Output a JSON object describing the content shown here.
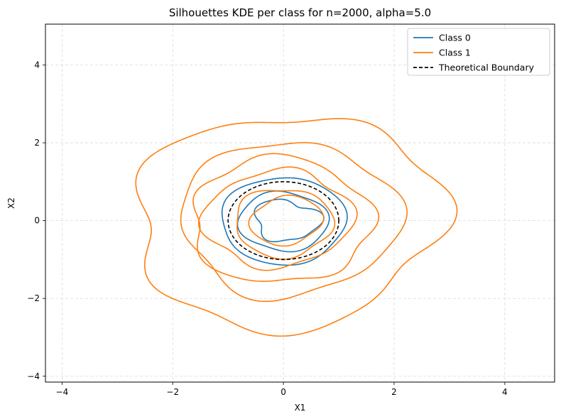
{
  "chart_data": {
    "type": "line",
    "title": "Silhouettes KDE per class for n=2000, alpha=5.0",
    "xlabel": "X1",
    "ylabel": "X2",
    "xlim": [
      -4.3,
      4.9
    ],
    "ylim": [
      -4.15,
      5.05
    ],
    "xticks": [
      -4,
      -2,
      0,
      2,
      4
    ],
    "yticks": [
      -4,
      -2,
      0,
      2,
      4
    ],
    "grid": true,
    "legend_position": "top-right",
    "colors": {
      "class0": "#1f77b4",
      "class1": "#ff7f0e",
      "boundary": "#000000",
      "grid": "#d9d9d9"
    },
    "series": [
      {
        "name": "Class 0",
        "style": "solid",
        "contours": [
          {
            "cx": 0.0,
            "cy": 0.0,
            "r": 1.12,
            "wobble": [
              [
                3,
                0.03,
                0.2
              ],
              [
                5,
                0.02,
                1.1
              ]
            ]
          },
          {
            "cx": 0.0,
            "cy": -0.02,
            "r": 0.78,
            "wobble": [
              [
                4,
                0.05,
                0.4
              ],
              [
                2,
                0.04,
                2.0
              ]
            ]
          },
          {
            "cx": 0.05,
            "cy": 0.0,
            "r": 0.55,
            "wobble": [
              [
                3,
                0.14,
                1.3
              ],
              [
                5,
                0.07,
                0.3
              ],
              [
                2,
                0.08,
                2.2
              ]
            ]
          }
        ]
      },
      {
        "name": "Class 1",
        "style": "solid",
        "contours": [
          {
            "cx": 0.05,
            "cy": 0.0,
            "r": 2.75,
            "wobble": [
              [
                3,
                0.06,
                0.5
              ],
              [
                5,
                0.05,
                1.7
              ],
              [
                7,
                0.035,
                0.9
              ],
              [
                2,
                0.03,
                0.1
              ]
            ]
          },
          {
            "cx": 0.1,
            "cy": 0.05,
            "r": 1.97,
            "wobble": [
              [
                3,
                0.05,
                1.0
              ],
              [
                6,
                0.035,
                0.4
              ],
              [
                4,
                0.03,
                2.4
              ]
            ]
          },
          {
            "cx": -0.05,
            "cy": 0.0,
            "r": 1.62,
            "wobble": [
              [
                5,
                0.05,
                0.6
              ],
              [
                3,
                0.04,
                2.2
              ],
              [
                7,
                0.03,
                1.3
              ]
            ]
          },
          {
            "cx": -0.1,
            "cy": 0.05,
            "r": 1.28,
            "wobble": [
              [
                4,
                0.06,
                1.8
              ],
              [
                6,
                0.04,
                0.2
              ],
              [
                2,
                0.05,
                1.0
              ]
            ]
          },
          {
            "cx": 0.0,
            "cy": -0.05,
            "r": 0.88,
            "wobble": [
              [
                3,
                0.05,
                0.7
              ],
              [
                5,
                0.04,
                2.6
              ]
            ]
          },
          {
            "cx": 0.05,
            "cy": 0.0,
            "r": 0.63,
            "wobble": [
              [
                2,
                0.08,
                0.2
              ],
              [
                4,
                0.05,
                1.4
              ]
            ]
          }
        ]
      },
      {
        "name": "Theoretical Boundary",
        "style": "dashed",
        "contours": [
          {
            "cx": 0.0,
            "cy": 0.0,
            "r": 1.0,
            "wobble": []
          }
        ]
      }
    ]
  }
}
